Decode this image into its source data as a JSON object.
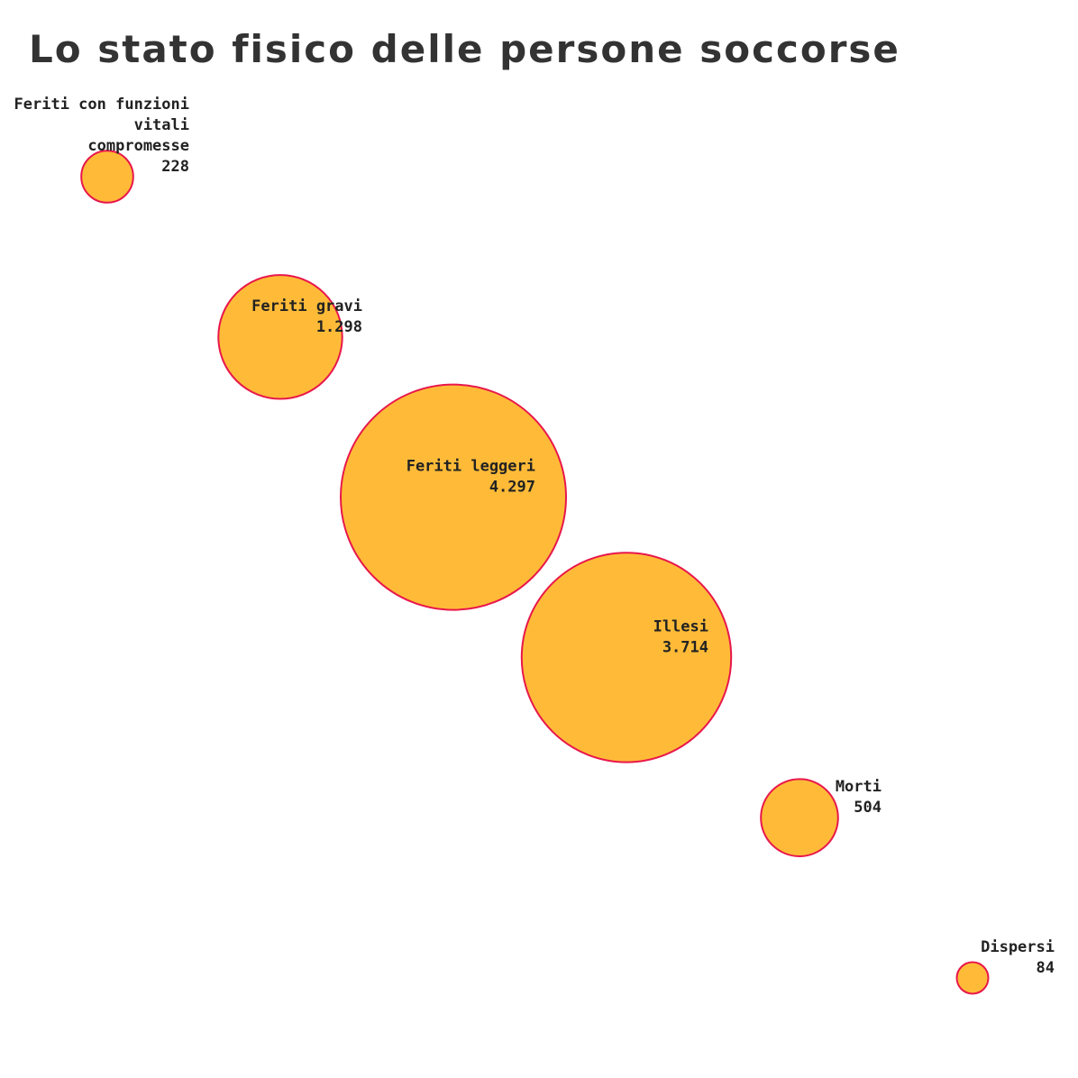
{
  "title": "Lo stato fisico delle persone soccorse",
  "colors": {
    "bubble_fill": "#FFBB38",
    "bubble_stroke": "#E8174B",
    "label_text": "#222222",
    "title_text": "#333333"
  },
  "chart_data": {
    "type": "bubble",
    "title": "Lo stato fisico delle persone soccorse",
    "xlabel": "",
    "ylabel": "",
    "grid": false,
    "legend": "none",
    "categories": [
      "Feriti con funzioni vitali compromesse",
      "Feriti gravi",
      "Feriti leggeri",
      "Illesi",
      "Morti",
      "Dispersi"
    ],
    "values": [
      228,
      1298,
      4297,
      3714,
      504,
      84
    ],
    "points": [
      {
        "label_lines": [
          "Feriti con funzioni",
          "vitali",
          "compromesse"
        ],
        "display_value": "228",
        "value": 228
      },
      {
        "label_lines": [
          "Feriti gravi"
        ],
        "display_value": "1.298",
        "value": 1298
      },
      {
        "label_lines": [
          "Feriti leggeri"
        ],
        "display_value": "4.297",
        "value": 4297
      },
      {
        "label_lines": [
          "Illesi"
        ],
        "display_value": "3.714",
        "value": 3714
      },
      {
        "label_lines": [
          "Morti"
        ],
        "display_value": "504",
        "value": 504
      },
      {
        "label_lines": [
          "Dispersi"
        ],
        "display_value": "84",
        "value": 84
      }
    ]
  }
}
